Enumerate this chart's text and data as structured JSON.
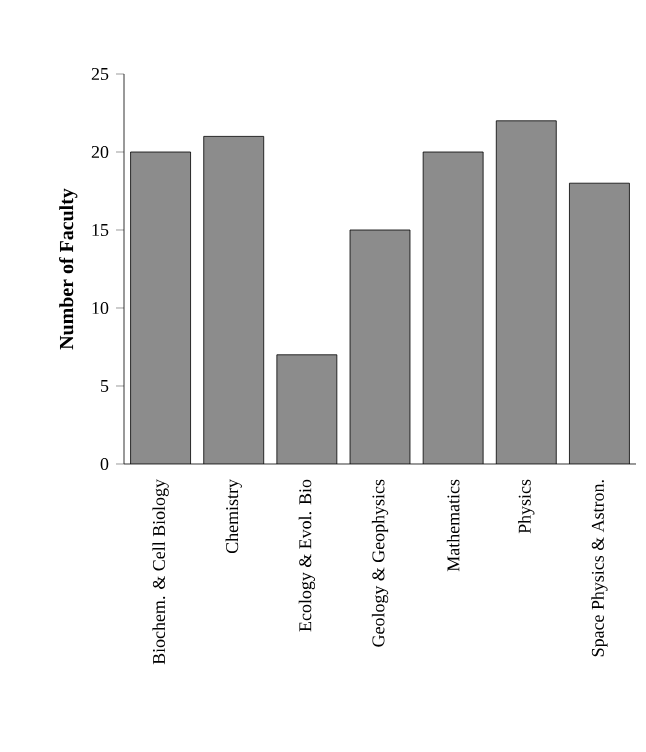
{
  "chart_data": {
    "type": "bar",
    "ylabel": "Number of Faculty",
    "categories": [
      "Biochem. & Cell Biology",
      "Chemistry",
      "Ecology & Evol. Bio",
      "Geology & Geophysics",
      "Mathematics",
      "Physics",
      "Space Physics & Astron."
    ],
    "values": [
      20,
      21,
      7,
      15,
      20,
      22,
      18
    ],
    "color": "#8c8c8c",
    "ylim": [
      0,
      25
    ],
    "yticks": [
      0,
      5,
      10,
      15,
      20,
      25
    ],
    "grid": false
  }
}
